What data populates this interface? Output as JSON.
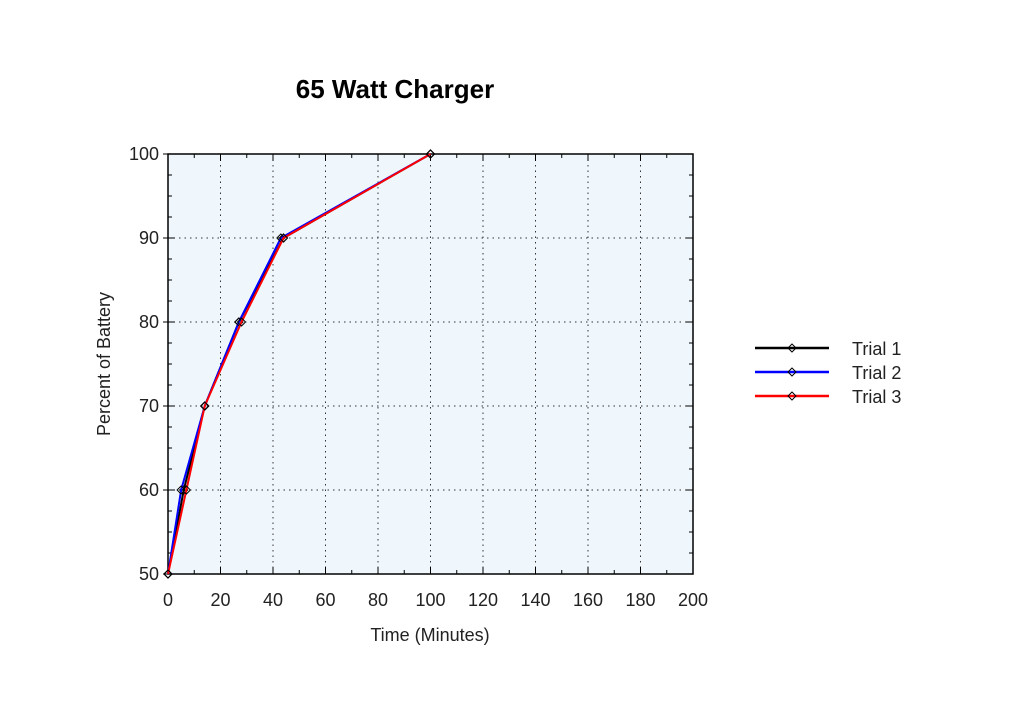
{
  "chart_data": {
    "type": "line",
    "title": "65 Watt Charger",
    "xlabel": "Time (Minutes)",
    "ylabel": "Percent of Battery",
    "xlim": [
      0,
      200
    ],
    "ylim": [
      50,
      100
    ],
    "x_ticks": [
      0,
      20,
      40,
      60,
      80,
      100,
      120,
      140,
      160,
      180,
      200
    ],
    "y_ticks": [
      50,
      60,
      70,
      80,
      90,
      100
    ],
    "grid": true,
    "legend_position": "right",
    "background": "#f0f7fc",
    "series": [
      {
        "name": "Trial 1",
        "color": "#000000",
        "marker": "diamond",
        "x": [
          0,
          6,
          14,
          27,
          44,
          100
        ],
        "y": [
          50,
          60,
          70,
          80,
          90,
          100
        ]
      },
      {
        "name": "Trial 2",
        "color": "#0000ff",
        "marker": "diamond",
        "x": [
          0,
          5,
          14,
          27,
          43,
          100
        ],
        "y": [
          50,
          60,
          70,
          80,
          90,
          100
        ]
      },
      {
        "name": "Trial 3",
        "color": "#ff0000",
        "marker": "diamond",
        "x": [
          0,
          7,
          14,
          28,
          44,
          100
        ],
        "y": [
          50,
          60,
          70,
          80,
          90,
          100
        ]
      }
    ]
  }
}
